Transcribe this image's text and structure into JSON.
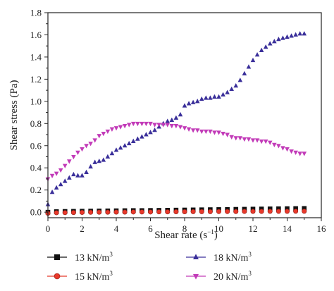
{
  "chart_data": {
    "type": "scatter",
    "xlabel": "Shear rate",
    "xlabel_unit": "(s",
    "xlabel_unit_exp": "−1",
    "xlabel_unit_close": ")",
    "ylabel": "Shear stress (Pa)",
    "xlim": [
      0,
      16
    ],
    "ylim": [
      -0.05,
      1.8
    ],
    "xticks": [
      "0",
      "2",
      "4",
      "6",
      "8",
      "10",
      "12",
      "14",
      "16"
    ],
    "yticks": [
      "0.0",
      "0.2",
      "0.4",
      "0.6",
      "0.8",
      "1.0",
      "1.2",
      "1.4",
      "1.6",
      "1.8"
    ],
    "legend_placement": "bottom",
    "series": [
      {
        "name": "13 kN/m",
        "name_exp": "3",
        "color": "#111111",
        "marker": "square",
        "x": [
          0,
          0.5,
          1,
          1.5,
          2,
          2.5,
          3,
          3.5,
          4,
          4.5,
          5,
          5.5,
          6,
          6.5,
          7,
          7.5,
          8,
          8.5,
          9,
          9.5,
          10,
          10.5,
          11,
          11.5,
          12,
          12.5,
          13,
          13.5,
          14,
          14.5,
          15
        ],
        "y": [
          0.0,
          0.005,
          0.007,
          0.008,
          0.009,
          0.01,
          0.011,
          0.012,
          0.013,
          0.014,
          0.015,
          0.015,
          0.016,
          0.017,
          0.018,
          0.019,
          0.02,
          0.021,
          0.022,
          0.023,
          0.024,
          0.025,
          0.026,
          0.027,
          0.028,
          0.029,
          0.03,
          0.031,
          0.032,
          0.033,
          0.034
        ]
      },
      {
        "name": "15 kN/m",
        "name_exp": "3",
        "color": "#e8392b",
        "marker": "circle",
        "x": [
          0,
          0.5,
          1,
          1.5,
          2,
          2.5,
          3,
          3.5,
          4,
          4.5,
          5,
          5.5,
          6,
          6.5,
          7,
          7.5,
          8,
          8.5,
          9,
          9.5,
          10,
          10.5,
          11,
          11.5,
          12,
          12.5,
          13,
          13.5,
          14,
          14.5,
          15
        ],
        "y": [
          -0.01,
          -0.005,
          -0.004,
          -0.003,
          -0.002,
          -0.001,
          0.0,
          0.0,
          0.001,
          0.001,
          0.002,
          0.002,
          0.002,
          0.003,
          0.003,
          0.004,
          0.004,
          0.005,
          0.005,
          0.005,
          0.006,
          0.006,
          0.006,
          0.007,
          0.007,
          0.007,
          0.008,
          0.008,
          0.008,
          0.009,
          0.009
        ]
      },
      {
        "name": "18 kN/m",
        "name_exp": "3",
        "color": "#3a2f9a",
        "marker": "triangle-up",
        "x": [
          0,
          0.25,
          0.5,
          0.75,
          1,
          1.25,
          1.5,
          1.75,
          2,
          2.25,
          2.5,
          2.75,
          3,
          3.25,
          3.5,
          3.75,
          4,
          4.25,
          4.5,
          4.75,
          5,
          5.25,
          5.5,
          5.75,
          6,
          6.25,
          6.5,
          6.75,
          7,
          7.25,
          7.5,
          7.75,
          8,
          8.25,
          8.5,
          8.75,
          9,
          9.25,
          9.5,
          9.75,
          10,
          10.25,
          10.5,
          10.75,
          11,
          11.25,
          11.5,
          11.75,
          12,
          12.25,
          12.5,
          12.75,
          13,
          13.25,
          13.5,
          13.75,
          14,
          14.25,
          14.5,
          14.75,
          15
        ],
        "y": [
          0.07,
          0.18,
          0.22,
          0.25,
          0.28,
          0.31,
          0.34,
          0.33,
          0.33,
          0.36,
          0.41,
          0.45,
          0.46,
          0.47,
          0.5,
          0.53,
          0.56,
          0.58,
          0.6,
          0.62,
          0.64,
          0.66,
          0.68,
          0.7,
          0.72,
          0.74,
          0.77,
          0.8,
          0.82,
          0.83,
          0.85,
          0.88,
          0.96,
          0.98,
          0.99,
          1.0,
          1.02,
          1.03,
          1.03,
          1.04,
          1.04,
          1.06,
          1.08,
          1.11,
          1.14,
          1.19,
          1.25,
          1.31,
          1.37,
          1.42,
          1.46,
          1.49,
          1.52,
          1.54,
          1.56,
          1.57,
          1.58,
          1.59,
          1.6,
          1.61,
          1.61
        ]
      },
      {
        "name": "20 kN/m",
        "name_exp": "3",
        "color": "#c23bb8",
        "marker": "triangle-down",
        "x": [
          0,
          0.25,
          0.5,
          0.75,
          1,
          1.25,
          1.5,
          1.75,
          2,
          2.25,
          2.5,
          2.75,
          3,
          3.25,
          3.5,
          3.75,
          4,
          4.25,
          4.5,
          4.75,
          5,
          5.25,
          5.5,
          5.75,
          6,
          6.25,
          6.5,
          6.75,
          7,
          7.25,
          7.5,
          7.75,
          8,
          8.25,
          8.5,
          8.75,
          9,
          9.25,
          9.5,
          9.75,
          10,
          10.25,
          10.5,
          10.75,
          11,
          11.25,
          11.5,
          11.75,
          12,
          12.25,
          12.5,
          12.75,
          13,
          13.25,
          13.5,
          13.75,
          14,
          14.25,
          14.5,
          14.75,
          15
        ],
        "y": [
          0.3,
          0.33,
          0.35,
          0.38,
          0.42,
          0.46,
          0.5,
          0.54,
          0.57,
          0.6,
          0.62,
          0.65,
          0.69,
          0.71,
          0.73,
          0.75,
          0.76,
          0.77,
          0.78,
          0.79,
          0.8,
          0.8,
          0.8,
          0.8,
          0.8,
          0.79,
          0.79,
          0.79,
          0.79,
          0.78,
          0.78,
          0.77,
          0.76,
          0.75,
          0.74,
          0.74,
          0.73,
          0.73,
          0.73,
          0.72,
          0.72,
          0.71,
          0.7,
          0.68,
          0.67,
          0.67,
          0.66,
          0.66,
          0.65,
          0.65,
          0.64,
          0.64,
          0.63,
          0.61,
          0.6,
          0.58,
          0.57,
          0.55,
          0.54,
          0.53,
          0.53
        ]
      }
    ]
  }
}
